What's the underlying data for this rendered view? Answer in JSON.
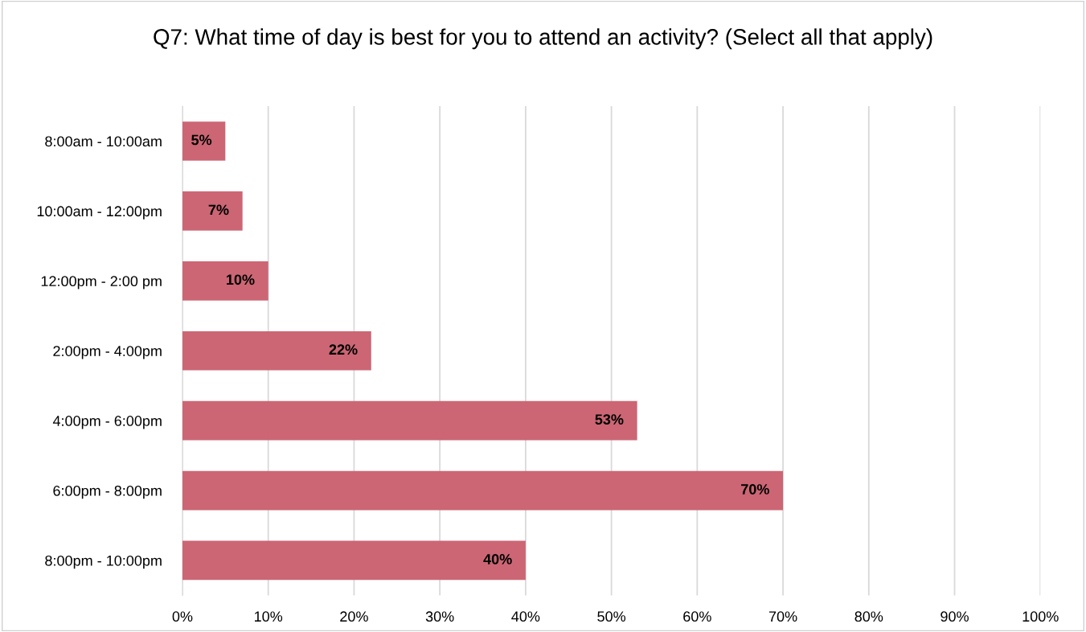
{
  "chart_data": {
    "type": "bar",
    "orientation": "horizontal",
    "title": "Q7: What time of day is best for you to attend an activity? (Select all that apply)",
    "categories": [
      "8:00am - 10:00am",
      "10:00am - 12:00pm",
      "12:00pm - 2:00 pm",
      "2:00pm - 4:00pm",
      "4:00pm - 6:00pm",
      "6:00pm - 8:00pm",
      "8:00pm - 10:00pm"
    ],
    "values": [
      5,
      7,
      10,
      22,
      53,
      70,
      40
    ],
    "color": "#cc6674",
    "value_labels": [
      "5%",
      "7%",
      "10%",
      "22%",
      "53%",
      "70%",
      "40%"
    ],
    "xlim": [
      0,
      100
    ],
    "xticks": [
      {
        "value": 0,
        "label": "0%"
      },
      {
        "value": 10,
        "label": "10%"
      },
      {
        "value": 20,
        "label": "20%"
      },
      {
        "value": 30,
        "label": "30%"
      },
      {
        "value": 40,
        "label": "40%"
      },
      {
        "value": 50,
        "label": "50%"
      },
      {
        "value": 60,
        "label": "60%"
      },
      {
        "value": 70,
        "label": "70%"
      },
      {
        "value": 80,
        "label": "80%"
      },
      {
        "value": 90,
        "label": "90%"
      },
      {
        "value": 100,
        "label": "100%"
      }
    ],
    "grid": "x",
    "legend": false
  }
}
